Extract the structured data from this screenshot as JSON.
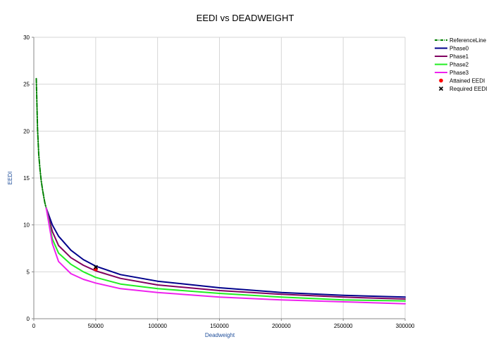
{
  "chart_data": {
    "type": "line",
    "title": "EEDI vs DEADWEIGHT",
    "xlabel": "Deadweight",
    "ylabel": "EEDI",
    "xlim": [
      0,
      300000
    ],
    "ylim": [
      0,
      30
    ],
    "xticks": [
      0,
      50000,
      100000,
      150000,
      200000,
      250000,
      300000
    ],
    "yticks": [
      0,
      5,
      10,
      15,
      20,
      25,
      30
    ],
    "grid": true,
    "legend_position": "top-right",
    "series": [
      {
        "name": "ReferenceLine",
        "color": "#008000",
        "dash": "dashdot",
        "x": [
          2000,
          3000,
          4000,
          5000,
          6000,
          7000,
          8000,
          9000,
          10000
        ],
        "y": [
          25.6,
          20.2,
          17.5,
          15.9,
          14.7,
          13.8,
          13.0,
          12.3,
          11.8
        ]
      },
      {
        "name": "Phase0",
        "color": "#00008b",
        "dash": "solid",
        "x": [
          10000,
          15000,
          20000,
          30000,
          40000,
          50000,
          70000,
          100000,
          150000,
          200000,
          250000,
          300000
        ],
        "y": [
          11.8,
          10.0,
          8.8,
          7.3,
          6.3,
          5.6,
          4.7,
          4.0,
          3.3,
          2.8,
          2.5,
          2.3
        ]
      },
      {
        "name": "Phase1",
        "color": "#800060",
        "dash": "solid",
        "x": [
          10000,
          15000,
          20000,
          30000,
          40000,
          50000,
          70000,
          100000,
          150000,
          200000,
          250000,
          300000
        ],
        "y": [
          11.8,
          9.3,
          7.8,
          6.5,
          5.7,
          5.1,
          4.3,
          3.6,
          3.0,
          2.6,
          2.3,
          2.1
        ]
      },
      {
        "name": "Phase2",
        "color": "#22ee22",
        "dash": "solid",
        "x": [
          10000,
          15000,
          20000,
          30000,
          40000,
          50000,
          70000,
          100000,
          150000,
          200000,
          250000,
          300000
        ],
        "y": [
          11.8,
          8.5,
          7.0,
          5.8,
          5.0,
          4.4,
          3.7,
          3.2,
          2.7,
          2.3,
          2.0,
          1.9
        ]
      },
      {
        "name": "Phase3",
        "color": "#ee22ee",
        "dash": "solid",
        "x": [
          10000,
          15000,
          20000,
          30000,
          40000,
          50000,
          70000,
          100000,
          150000,
          200000,
          250000,
          300000
        ],
        "y": [
          11.8,
          8.0,
          6.1,
          4.8,
          4.2,
          3.8,
          3.2,
          2.8,
          2.3,
          2.0,
          1.8,
          1.6
        ]
      }
    ],
    "markers": [
      {
        "name": "Attained EEDI",
        "color": "#ff0000",
        "shape": "circle",
        "x": 50000,
        "y": 5.3
      },
      {
        "name": "Required EEDI",
        "color": "#000000",
        "shape": "cross",
        "x": 50000,
        "y": 5.5
      }
    ]
  }
}
